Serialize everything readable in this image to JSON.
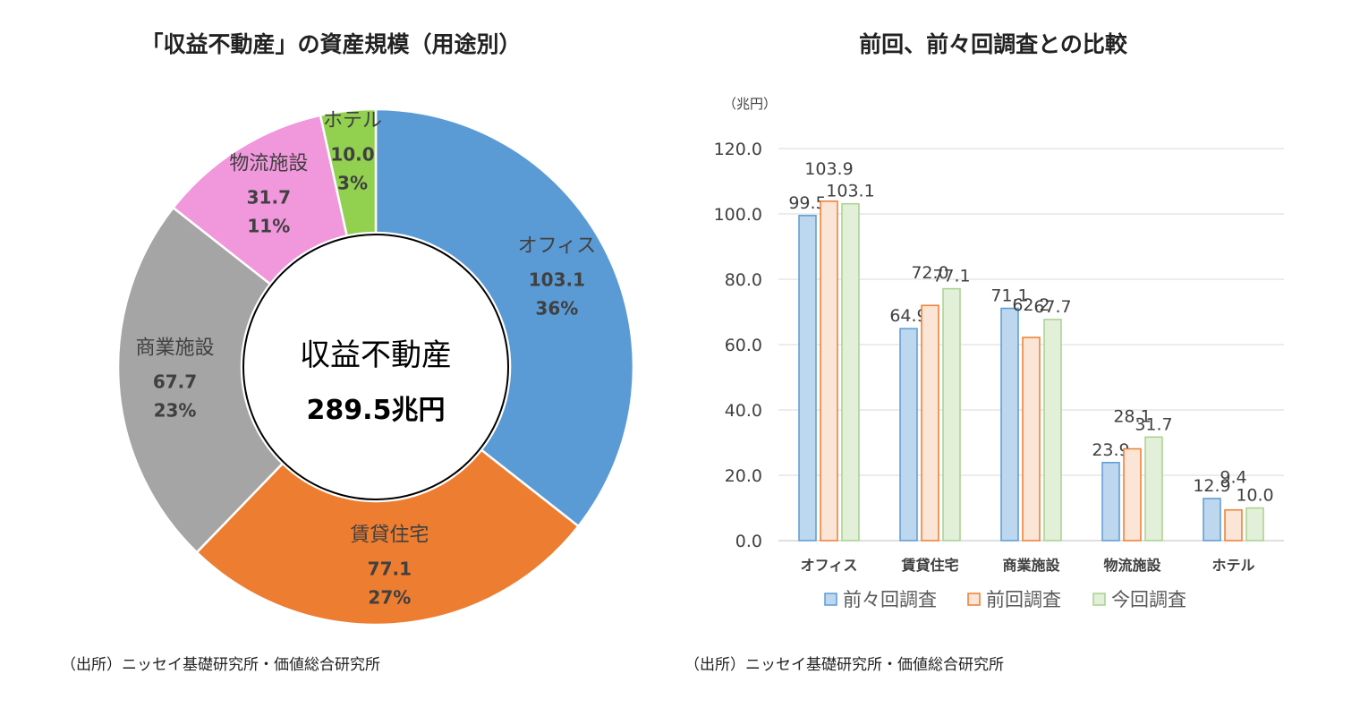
{
  "left_panel": {
    "title": "「収益不動産」の資産規模（用途別）",
    "center_label": "収益不動産",
    "center_value": "289.5兆円",
    "source": "（出所）ニッセイ基礎研究所・価値総合研究所"
  },
  "right_panel": {
    "title": "前回、前々回調査との比較",
    "unit": "（兆円）",
    "source": "（出所）ニッセイ基礎研究所・価値総合研究所"
  },
  "chart_data": [
    {
      "type": "pie",
      "title": "「収益不動産」の資産規模（用途別）",
      "slices": [
        {
          "label": "オフィス",
          "value": 103.1,
          "value_label": "103.1",
          "pct_label": "36%",
          "color": "#5B9BD5"
        },
        {
          "label": "賃貸住宅",
          "value": 77.1,
          "value_label": "77.1",
          "pct_label": "27%",
          "color": "#ED7D31"
        },
        {
          "label": "商業施設",
          "value": 67.7,
          "value_label": "67.7",
          "pct_label": "23%",
          "color": "#A5A5A5"
        },
        {
          "label": "物流施設",
          "value": 31.7,
          "value_label": "31.7",
          "pct_label": "11%",
          "color": "#F197DC"
        },
        {
          "label": "ホテル",
          "value": 10.0,
          "value_label": "10.0",
          "pct_label": "3%",
          "color": "#92D050"
        }
      ],
      "total_label": "289.5兆円"
    },
    {
      "type": "bar",
      "title": "前回、前々回調査との比較",
      "ylabel": "（兆円）",
      "ylim": [
        0,
        120
      ],
      "yticks": [
        "0.0",
        "20.0",
        "40.0",
        "60.0",
        "80.0",
        "100.0",
        "120.0"
      ],
      "grid": true,
      "legend_position": "bottom",
      "categories": [
        "オフィス",
        "賃貸住宅",
        "商業施設",
        "物流施設",
        "ホテル"
      ],
      "series": [
        {
          "name": "前々回調査",
          "values": [
            99.5,
            64.9,
            71.1,
            23.9,
            12.9
          ],
          "labels": [
            "99.5",
            "64.9",
            "71.1",
            "23.9",
            "12.9"
          ],
          "fill": "#BDD7EE",
          "stroke": "#5B9BD5"
        },
        {
          "name": "前回調査",
          "values": [
            103.9,
            72.0,
            62.2,
            28.1,
            9.4
          ],
          "labels": [
            "103.9",
            "72.0",
            "62.2",
            "28.1",
            "9.4"
          ],
          "fill": "#FBE5D6",
          "stroke": "#ED7D31"
        },
        {
          "name": "今回調査",
          "values": [
            103.1,
            77.1,
            67.7,
            31.7,
            10.0
          ],
          "labels": [
            "103.1",
            "77.1",
            "67.7",
            "31.7",
            "10.0"
          ],
          "fill": "#E2F0D9",
          "stroke": "#A9D18E"
        }
      ]
    }
  ]
}
